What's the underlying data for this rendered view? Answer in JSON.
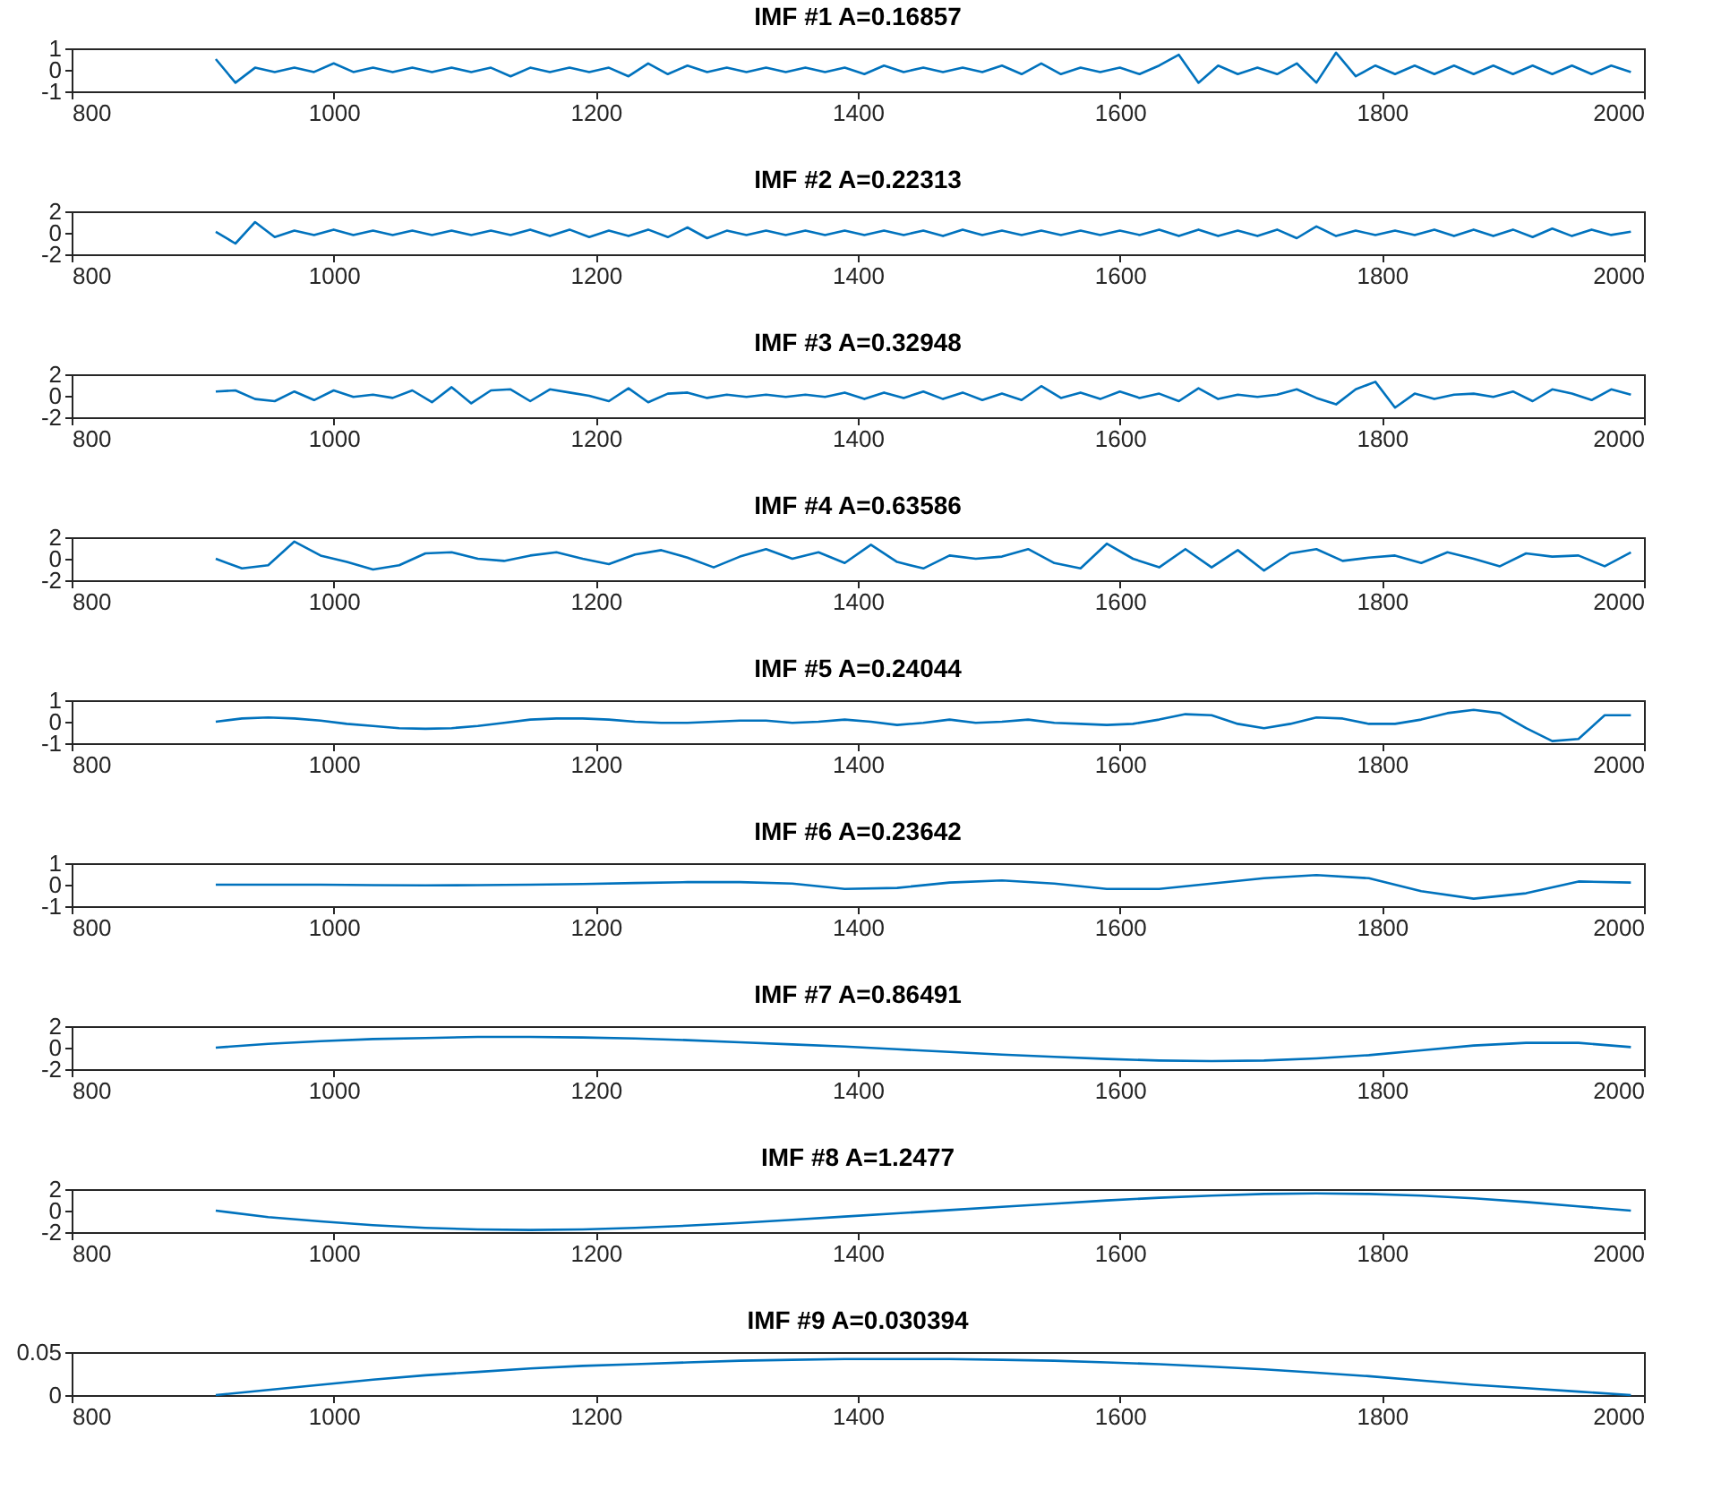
{
  "chart_data": [
    {
      "type": "line",
      "title": "IMF #1 A=0.16857",
      "xlim": [
        800,
        2000
      ],
      "xticks": [
        800,
        1000,
        1200,
        1400,
        1600,
        1800,
        2000
      ],
      "ylim": [
        -1,
        1
      ],
      "yticks": [
        -1,
        0,
        1
      ],
      "x": [
        910,
        925,
        940,
        955,
        970,
        985,
        1000,
        1015,
        1030,
        1045,
        1060,
        1075,
        1090,
        1105,
        1120,
        1135,
        1150,
        1165,
        1180,
        1195,
        1210,
        1225,
        1240,
        1255,
        1270,
        1285,
        1300,
        1315,
        1330,
        1345,
        1360,
        1375,
        1390,
        1405,
        1420,
        1435,
        1450,
        1465,
        1480,
        1495,
        1510,
        1525,
        1540,
        1555,
        1570,
        1585,
        1600,
        1615,
        1630,
        1645,
        1660,
        1675,
        1690,
        1705,
        1720,
        1735,
        1750,
        1765,
        1780,
        1795,
        1810,
        1825,
        1840,
        1855,
        1870,
        1885,
        1900,
        1915,
        1930,
        1945,
        1960,
        1975,
        1990
      ],
      "series": [
        {
          "color": "#0072bd",
          "values": [
            0.5,
            -0.6,
            0.1,
            -0.1,
            0.1,
            -0.1,
            0.3,
            -0.1,
            0.1,
            -0.1,
            0.1,
            -0.1,
            0.1,
            -0.1,
            0.1,
            -0.3,
            0.1,
            -0.1,
            0.1,
            -0.1,
            0.1,
            -0.3,
            0.3,
            -0.2,
            0.2,
            -0.1,
            0.1,
            -0.1,
            0.1,
            -0.1,
            0.1,
            -0.1,
            0.1,
            -0.2,
            0.2,
            -0.1,
            0.1,
            -0.1,
            0.1,
            -0.1,
            0.2,
            -0.2,
            0.3,
            -0.2,
            0.1,
            -0.1,
            0.1,
            -0.2,
            0.2,
            0.7,
            -0.6,
            0.2,
            -0.2,
            0.1,
            -0.2,
            0.3,
            -0.6,
            0.8,
            -0.3,
            0.2,
            -0.2,
            0.2,
            -0.2,
            0.2,
            -0.2,
            0.2,
            -0.2,
            0.2,
            -0.2,
            0.2,
            -0.2,
            0.2,
            -0.1
          ]
        }
      ]
    },
    {
      "type": "line",
      "title": "IMF #2 A=0.22313",
      "xlim": [
        800,
        2000
      ],
      "xticks": [
        800,
        1000,
        1200,
        1400,
        1600,
        1800,
        2000
      ],
      "ylim": [
        -2,
        2
      ],
      "yticks": [
        -2,
        0,
        2
      ],
      "x": [
        910,
        925,
        940,
        955,
        970,
        985,
        1000,
        1015,
        1030,
        1045,
        1060,
        1075,
        1090,
        1105,
        1120,
        1135,
        1150,
        1165,
        1180,
        1195,
        1210,
        1225,
        1240,
        1255,
        1270,
        1285,
        1300,
        1315,
        1330,
        1345,
        1360,
        1375,
        1390,
        1405,
        1420,
        1435,
        1450,
        1465,
        1480,
        1495,
        1510,
        1525,
        1540,
        1555,
        1570,
        1585,
        1600,
        1615,
        1630,
        1645,
        1660,
        1675,
        1690,
        1705,
        1720,
        1735,
        1750,
        1765,
        1780,
        1795,
        1810,
        1825,
        1840,
        1855,
        1870,
        1885,
        1900,
        1915,
        1930,
        1945,
        1960,
        1975,
        1990
      ],
      "series": [
        {
          "color": "#0072bd",
          "values": [
            0.1,
            -1.0,
            1.0,
            -0.4,
            0.2,
            -0.2,
            0.3,
            -0.2,
            0.2,
            -0.2,
            0.2,
            -0.2,
            0.2,
            -0.2,
            0.2,
            -0.2,
            0.3,
            -0.3,
            0.3,
            -0.4,
            0.2,
            -0.3,
            0.3,
            -0.4,
            0.5,
            -0.5,
            0.2,
            -0.2,
            0.2,
            -0.2,
            0.2,
            -0.2,
            0.2,
            -0.2,
            0.2,
            -0.2,
            0.2,
            -0.3,
            0.3,
            -0.2,
            0.2,
            -0.2,
            0.2,
            -0.2,
            0.2,
            -0.2,
            0.2,
            -0.2,
            0.3,
            -0.3,
            0.3,
            -0.3,
            0.2,
            -0.3,
            0.3,
            -0.5,
            0.6,
            -0.3,
            0.2,
            -0.2,
            0.2,
            -0.2,
            0.3,
            -0.3,
            0.3,
            -0.3,
            0.3,
            -0.4,
            0.4,
            -0.3,
            0.3,
            -0.2,
            0.1
          ]
        }
      ]
    },
    {
      "type": "line",
      "title": "IMF #3 A=0.32948",
      "xlim": [
        800,
        2000
      ],
      "xticks": [
        800,
        1000,
        1200,
        1400,
        1600,
        1800,
        2000
      ],
      "ylim": [
        -2,
        2
      ],
      "yticks": [
        -2,
        0,
        2
      ],
      "x": [
        910,
        925,
        940,
        955,
        970,
        985,
        1000,
        1015,
        1030,
        1045,
        1060,
        1075,
        1090,
        1105,
        1120,
        1135,
        1150,
        1165,
        1180,
        1195,
        1210,
        1225,
        1240,
        1255,
        1270,
        1285,
        1300,
        1315,
        1330,
        1345,
        1360,
        1375,
        1390,
        1405,
        1420,
        1435,
        1450,
        1465,
        1480,
        1495,
        1510,
        1525,
        1540,
        1555,
        1570,
        1585,
        1600,
        1615,
        1630,
        1645,
        1660,
        1675,
        1690,
        1705,
        1720,
        1735,
        1750,
        1765,
        1780,
        1795,
        1810,
        1825,
        1840,
        1855,
        1870,
        1885,
        1900,
        1915,
        1930,
        1945,
        1960,
        1975,
        1990
      ],
      "series": [
        {
          "color": "#0072bd",
          "values": [
            0.4,
            0.5,
            -0.3,
            -0.5,
            0.4,
            -0.4,
            0.5,
            -0.1,
            0.1,
            -0.2,
            0.5,
            -0.6,
            0.8,
            -0.7,
            0.5,
            0.6,
            -0.5,
            0.6,
            0.3,
            0.0,
            -0.5,
            0.7,
            -0.6,
            0.2,
            0.3,
            -0.2,
            0.1,
            -0.1,
            0.1,
            -0.1,
            0.1,
            -0.1,
            0.3,
            -0.3,
            0.3,
            -0.2,
            0.4,
            -0.3,
            0.3,
            -0.4,
            0.2,
            -0.4,
            0.9,
            -0.2,
            0.3,
            -0.3,
            0.4,
            -0.2,
            0.2,
            -0.5,
            0.7,
            -0.3,
            0.1,
            -0.1,
            0.1,
            0.6,
            -0.2,
            -0.8,
            0.6,
            1.3,
            -1.1,
            0.2,
            -0.3,
            0.1,
            0.2,
            -0.1,
            0.4,
            -0.5,
            0.6,
            0.2,
            -0.4,
            0.6,
            0.1
          ]
        }
      ]
    },
    {
      "type": "line",
      "title": "IMF #4 A=0.63586",
      "xlim": [
        800,
        2000
      ],
      "xticks": [
        800,
        1000,
        1200,
        1400,
        1600,
        1800,
        2000
      ],
      "ylim": [
        -2,
        2
      ],
      "yticks": [
        -2,
        0,
        2
      ],
      "x": [
        910,
        930,
        950,
        970,
        990,
        1010,
        1030,
        1050,
        1070,
        1090,
        1110,
        1130,
        1150,
        1170,
        1190,
        1210,
        1230,
        1250,
        1270,
        1290,
        1310,
        1330,
        1350,
        1370,
        1390,
        1410,
        1430,
        1450,
        1470,
        1490,
        1510,
        1530,
        1550,
        1570,
        1590,
        1610,
        1630,
        1650,
        1670,
        1690,
        1710,
        1730,
        1750,
        1770,
        1790,
        1810,
        1830,
        1850,
        1870,
        1890,
        1910,
        1930,
        1950,
        1970,
        1990
      ],
      "series": [
        {
          "color": "#0072bd",
          "values": [
            0.0,
            -0.9,
            -0.6,
            1.6,
            0.3,
            -0.3,
            -1.0,
            -0.6,
            0.5,
            0.6,
            0.0,
            -0.2,
            0.3,
            0.6,
            0.0,
            -0.5,
            0.4,
            0.8,
            0.1,
            -0.8,
            0.2,
            0.9,
            0.0,
            0.6,
            -0.4,
            1.3,
            -0.3,
            -0.9,
            0.3,
            0.0,
            0.2,
            0.9,
            -0.4,
            -0.9,
            1.4,
            0.0,
            -0.8,
            0.9,
            -0.8,
            0.8,
            -1.1,
            0.5,
            0.9,
            -0.2,
            0.1,
            0.3,
            -0.4,
            0.6,
            0.0,
            -0.7,
            0.5,
            0.2,
            0.3,
            -0.7,
            0.6
          ]
        }
      ]
    },
    {
      "type": "line",
      "title": "IMF #5 A=0.24044",
      "xlim": [
        800,
        2000
      ],
      "xticks": [
        800,
        1000,
        1200,
        1400,
        1600,
        1800,
        2000
      ],
      "ylim": [
        -1,
        1
      ],
      "yticks": [
        -1,
        0,
        1
      ],
      "x": [
        910,
        930,
        950,
        970,
        990,
        1010,
        1030,
        1050,
        1070,
        1090,
        1110,
        1130,
        1150,
        1170,
        1190,
        1210,
        1230,
        1250,
        1270,
        1290,
        1310,
        1330,
        1350,
        1370,
        1390,
        1410,
        1430,
        1450,
        1470,
        1490,
        1510,
        1530,
        1550,
        1570,
        1590,
        1610,
        1630,
        1650,
        1670,
        1690,
        1710,
        1730,
        1750,
        1770,
        1790,
        1810,
        1830,
        1850,
        1870,
        1890,
        1910,
        1930,
        1950,
        1970,
        1990
      ],
      "series": [
        {
          "color": "#0072bd",
          "values": [
            0.0,
            0.15,
            0.2,
            0.15,
            0.05,
            -0.1,
            -0.2,
            -0.3,
            -0.33,
            -0.3,
            -0.2,
            -0.05,
            0.1,
            0.15,
            0.15,
            0.1,
            0.0,
            -0.05,
            -0.05,
            0.0,
            0.05,
            0.05,
            -0.05,
            0.0,
            0.1,
            0.0,
            -0.15,
            -0.05,
            0.1,
            -0.05,
            0.0,
            0.1,
            -0.05,
            -0.1,
            -0.15,
            -0.1,
            0.1,
            0.35,
            0.3,
            -0.1,
            -0.3,
            -0.1,
            0.2,
            0.15,
            -0.1,
            -0.1,
            0.1,
            0.4,
            0.55,
            0.4,
            -0.3,
            -0.9,
            -0.8,
            0.3,
            0.3
          ]
        }
      ]
    },
    {
      "type": "line",
      "title": "IMF #6 A=0.23642",
      "xlim": [
        800,
        2000
      ],
      "xticks": [
        800,
        1000,
        1200,
        1400,
        1600,
        1800,
        2000
      ],
      "ylim": [
        -1,
        1
      ],
      "yticks": [
        -1,
        0,
        1
      ],
      "x": [
        910,
        950,
        990,
        1030,
        1070,
        1110,
        1150,
        1190,
        1230,
        1270,
        1310,
        1350,
        1390,
        1430,
        1470,
        1510,
        1550,
        1590,
        1630,
        1670,
        1710,
        1750,
        1790,
        1830,
        1870,
        1910,
        1950,
        1990
      ],
      "series": [
        {
          "color": "#0072bd",
          "values": [
            0.0,
            0.0,
            0.0,
            -0.02,
            -0.03,
            -0.02,
            0.0,
            0.03,
            0.08,
            0.12,
            0.12,
            0.05,
            -0.2,
            -0.15,
            0.1,
            0.2,
            0.05,
            -0.2,
            -0.2,
            0.05,
            0.3,
            0.45,
            0.3,
            -0.3,
            -0.65,
            -0.4,
            0.15,
            0.1
          ]
        }
      ]
    },
    {
      "type": "line",
      "title": "IMF #7 A=0.86491",
      "xlim": [
        800,
        2000
      ],
      "xticks": [
        800,
        1000,
        1200,
        1400,
        1600,
        1800,
        2000
      ],
      "ylim": [
        -2,
        2
      ],
      "yticks": [
        -2,
        0,
        2
      ],
      "x": [
        910,
        950,
        990,
        1030,
        1070,
        1110,
        1150,
        1190,
        1230,
        1270,
        1310,
        1350,
        1390,
        1430,
        1470,
        1510,
        1550,
        1590,
        1630,
        1670,
        1710,
        1750,
        1790,
        1830,
        1870,
        1910,
        1950,
        1990
      ],
      "series": [
        {
          "color": "#0072bd",
          "values": [
            0.0,
            0.35,
            0.6,
            0.8,
            0.9,
            1.0,
            1.0,
            0.95,
            0.85,
            0.7,
            0.5,
            0.3,
            0.1,
            -0.15,
            -0.4,
            -0.65,
            -0.85,
            -1.05,
            -1.2,
            -1.25,
            -1.2,
            -1.0,
            -0.7,
            -0.25,
            0.2,
            0.45,
            0.45,
            0.05
          ]
        }
      ]
    },
    {
      "type": "line",
      "title": "IMF #8 A=1.2477",
      "xlim": [
        800,
        2000
      ],
      "xticks": [
        800,
        1000,
        1200,
        1400,
        1600,
        1800,
        2000
      ],
      "ylim": [
        -2,
        2
      ],
      "yticks": [
        -2,
        0,
        2
      ],
      "x": [
        910,
        950,
        990,
        1030,
        1070,
        1110,
        1150,
        1190,
        1230,
        1270,
        1310,
        1350,
        1390,
        1430,
        1470,
        1510,
        1550,
        1590,
        1630,
        1670,
        1710,
        1750,
        1790,
        1830,
        1870,
        1910,
        1950,
        1990
      ],
      "series": [
        {
          "color": "#0072bd",
          "values": [
            0.0,
            -0.6,
            -1.0,
            -1.35,
            -1.6,
            -1.75,
            -1.8,
            -1.75,
            -1.6,
            -1.4,
            -1.15,
            -0.85,
            -0.55,
            -0.25,
            0.05,
            0.35,
            0.65,
            0.95,
            1.2,
            1.4,
            1.55,
            1.6,
            1.55,
            1.4,
            1.15,
            0.8,
            0.4,
            0.0
          ]
        }
      ]
    },
    {
      "type": "line",
      "title": "IMF #9 A=0.030394",
      "xlim": [
        800,
        2000
      ],
      "xticks": [
        800,
        1000,
        1200,
        1400,
        1600,
        1800,
        2000
      ],
      "ylim": [
        0,
        0.05
      ],
      "yticks": [
        0,
        0.05
      ],
      "x": [
        910,
        950,
        990,
        1030,
        1070,
        1110,
        1150,
        1190,
        1230,
        1270,
        1310,
        1350,
        1390,
        1430,
        1470,
        1510,
        1550,
        1590,
        1630,
        1670,
        1710,
        1750,
        1790,
        1830,
        1870,
        1910,
        1950,
        1990
      ],
      "series": [
        {
          "color": "#0072bd",
          "values": [
            0.0,
            0.006,
            0.012,
            0.018,
            0.023,
            0.027,
            0.031,
            0.034,
            0.036,
            0.038,
            0.04,
            0.041,
            0.042,
            0.042,
            0.042,
            0.041,
            0.04,
            0.038,
            0.036,
            0.033,
            0.03,
            0.026,
            0.022,
            0.017,
            0.012,
            0.008,
            0.004,
            0.0
          ]
        }
      ]
    }
  ]
}
